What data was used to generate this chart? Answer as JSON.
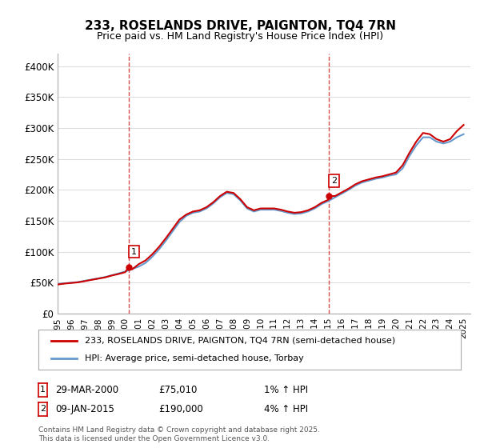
{
  "title": "233, ROSELANDS DRIVE, PAIGNTON, TQ4 7RN",
  "subtitle": "Price paid vs. HM Land Registry's House Price Index (HPI)",
  "ylabel_ticks": [
    "£0",
    "£50K",
    "£100K",
    "£150K",
    "£200K",
    "£250K",
    "£300K",
    "£350K",
    "£400K"
  ],
  "ytick_vals": [
    0,
    50000,
    100000,
    150000,
    200000,
    250000,
    300000,
    350000,
    400000
  ],
  "ylim": [
    0,
    420000
  ],
  "xlim_start": 1995.0,
  "xlim_end": 2025.5,
  "xtick_years": [
    1995,
    1996,
    1997,
    1998,
    1999,
    2000,
    2001,
    2002,
    2003,
    2004,
    2005,
    2006,
    2007,
    2008,
    2009,
    2010,
    2011,
    2012,
    2013,
    2014,
    2015,
    2016,
    2017,
    2018,
    2019,
    2020,
    2021,
    2022,
    2023,
    2024,
    2025
  ],
  "hpi_color": "#6699cc",
  "price_color": "#cc0000",
  "marker1_x": 2000.24,
  "marker1_y": 75010,
  "marker2_x": 2015.03,
  "marker2_y": 190000,
  "marker1_label": "1",
  "marker2_label": "2",
  "marker1_date": "29-MAR-2000",
  "marker1_price": "£75,010",
  "marker1_hpi": "1% ↑ HPI",
  "marker2_date": "09-JAN-2015",
  "marker2_price": "£190,000",
  "marker2_hpi": "4% ↑ HPI",
  "legend_line1": "233, ROSELANDS DRIVE, PAIGNTON, TQ4 7RN (semi-detached house)",
  "legend_line2": "HPI: Average price, semi-detached house, Torbay",
  "footer": "Contains HM Land Registry data © Crown copyright and database right 2025.\nThis data is licensed under the Open Government Licence v3.0.",
  "vline1_x": 2000.24,
  "vline2_x": 2015.03,
  "background_color": "#ffffff",
  "grid_color": "#dddddd"
}
